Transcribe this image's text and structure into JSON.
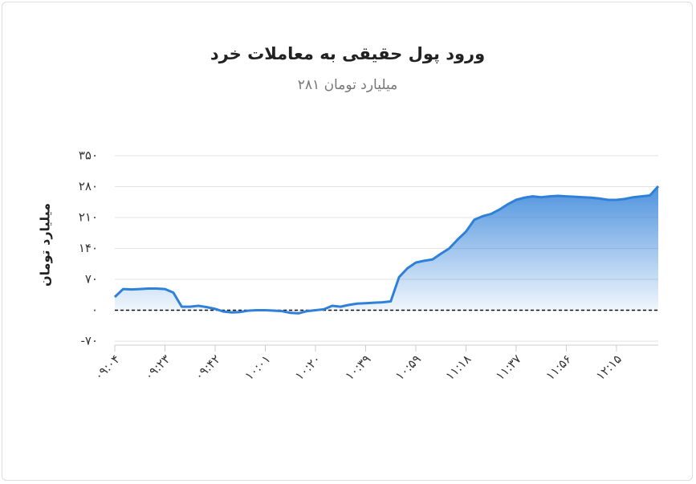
{
  "chart_data": {
    "type": "area",
    "title": "ورود پول حقیقی به معاملات خرد",
    "subtitle": "میلیارد تومان ۲۸۱",
    "y_label": "میلیارد تومان",
    "categories": [
      "۰۹:۰۴",
      null,
      null,
      null,
      null,
      null,
      "۰۹:۲۳",
      null,
      null,
      null,
      null,
      null,
      "۰۹:۴۲",
      null,
      null,
      null,
      null,
      null,
      "۱۰:۰۱",
      null,
      null,
      null,
      null,
      null,
      "۱۰:۲۰",
      null,
      null,
      null,
      null,
      null,
      "۱۰:۳۹",
      null,
      null,
      null,
      null,
      null,
      "۱۰:۵۹",
      null,
      null,
      null,
      null,
      null,
      "۱۱:۱۸",
      null,
      null,
      null,
      null,
      null,
      "۱۱:۳۷",
      null,
      null,
      null,
      null,
      null,
      "۱۱:۵۶",
      null,
      null,
      null,
      null,
      null,
      "۱۲:۱۵",
      null,
      null,
      null,
      null,
      null
    ],
    "values": [
      30,
      48,
      47,
      48,
      49,
      49,
      48,
      40,
      8,
      8,
      10,
      7,
      3,
      -3,
      -5,
      -4,
      -1,
      0,
      0,
      -1,
      -2,
      -6,
      -7,
      -2,
      0,
      2,
      10,
      8,
      12,
      15,
      16,
      17,
      18,
      20,
      75,
      95,
      108,
      112,
      115,
      128,
      140,
      160,
      178,
      205,
      213,
      218,
      228,
      240,
      250,
      255,
      258,
      256,
      258,
      259,
      258,
      257,
      256,
      255,
      253,
      250,
      250,
      252,
      256,
      258,
      260,
      281
    ],
    "color": "#2f80d8",
    "ylim": [
      -70,
      350
    ],
    "yticks": [
      {
        "value": -70,
        "label": "-۷۰"
      },
      {
        "value": 0,
        "label": "۰"
      },
      {
        "value": 70,
        "label": "۷۰"
      },
      {
        "value": 140,
        "label": "۱۴۰"
      },
      {
        "value": 210,
        "label": "۲۱۰"
      },
      {
        "value": 280,
        "label": "۲۸۰"
      },
      {
        "value": 350,
        "label": "۳۵۰"
      }
    ],
    "grid": true
  }
}
